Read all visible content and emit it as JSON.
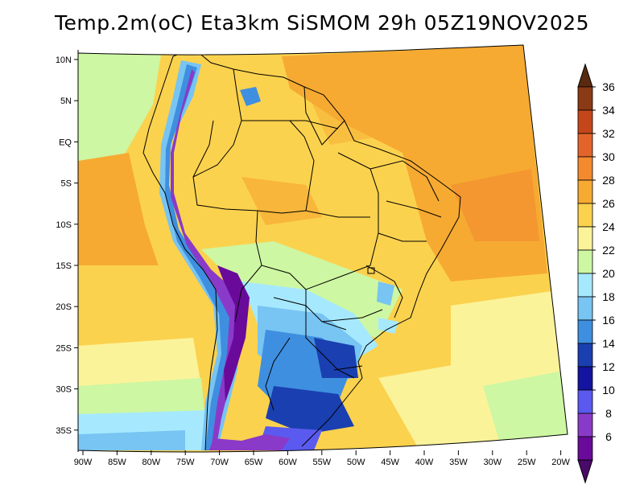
{
  "title": "Temp.2m(oC) Eta3km SiSMOM 29h 05Z19NOV2025",
  "map": {
    "lat_labels": [
      "10N",
      "5N",
      "EQ",
      "5S",
      "10S",
      "15S",
      "20S",
      "25S",
      "30S",
      "35S"
    ],
    "lon_labels": [
      "90W",
      "85W",
      "80W",
      "75W",
      "70W",
      "65W",
      "60W",
      "55W",
      "50W",
      "45W",
      "40W",
      "35W",
      "30W",
      "25W",
      "20W"
    ],
    "extent": {
      "lon_min": -91,
      "lon_max": -19.5,
      "lat_min": -38,
      "lat_max": 12
    }
  },
  "colorbar": {
    "labels": [
      "36",
      "34",
      "32",
      "30",
      "28",
      "26",
      "24",
      "22",
      "20",
      "18",
      "16",
      "14",
      "12",
      "10",
      "8",
      "6"
    ],
    "colors": [
      "#5a2a10",
      "#8a3a14",
      "#c4471b",
      "#e2642a",
      "#f48a2e",
      "#f6aa32",
      "#fbd24e",
      "#fbf39a",
      "#cdf7a2",
      "#a6e9ff",
      "#78c4f2",
      "#3f8fe0",
      "#1a3fb0",
      "#1414a0",
      "#5a5af0",
      "#8a3ac8",
      "#6a0a9a",
      "#4a0a6a"
    ]
  }
}
